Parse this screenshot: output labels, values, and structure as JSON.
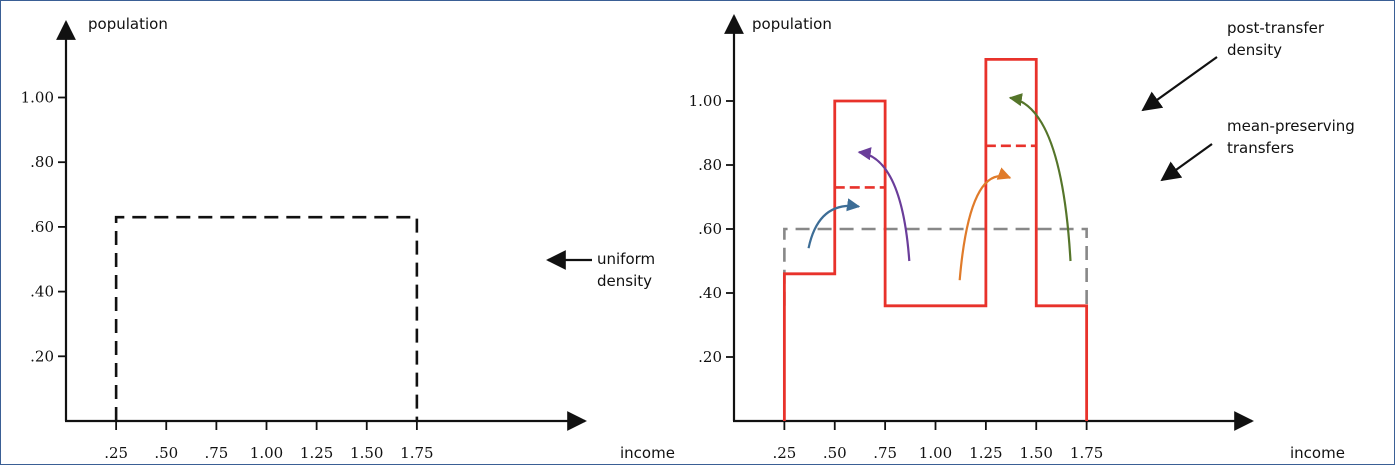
{
  "chart_data": [
    {
      "type": "line",
      "title": "",
      "ylabel": "population",
      "xlabel": "income",
      "x_ticks": [
        ".25",
        ".50",
        ".75",
        "1.00",
        "1.25",
        "1.50",
        "1.75"
      ],
      "y_ticks": [
        ".20",
        ".40",
        ".60",
        ".80",
        "1.00"
      ],
      "xlim": [
        0,
        2.0
      ],
      "ylim": [
        0,
        1.2
      ],
      "grid": false,
      "series": [
        {
          "name": "uniform density",
          "style": "dashed",
          "color": "#111111",
          "x": [
            0.25,
            0.25,
            1.75,
            1.75
          ],
          "y": [
            0,
            0.63,
            0.63,
            0
          ]
        }
      ],
      "annotations": [
        {
          "text": [
            "uniform",
            "density"
          ],
          "points_to": "uniform density"
        }
      ]
    },
    {
      "type": "line",
      "title": "",
      "ylabel": "population",
      "xlabel": "income",
      "x_ticks": [
        ".25",
        ".50",
        ".75",
        "1.00",
        "1.25",
        "1.50",
        "1.75"
      ],
      "y_ticks": [
        ".20",
        ".40",
        ".60",
        ".80",
        "1.00"
      ],
      "xlim": [
        0,
        2.0
      ],
      "ylim": [
        0,
        1.2
      ],
      "grid": false,
      "series": [
        {
          "name": "uniform density",
          "style": "dashed",
          "color": "#888888",
          "x": [
            0.25,
            0.25,
            1.75,
            1.75
          ],
          "y": [
            0.36,
            0.6,
            0.6,
            0.36
          ]
        },
        {
          "name": "post-transfer density",
          "style": "solid",
          "color": "#e8322b",
          "x": [
            0.25,
            0.25,
            0.5,
            0.5,
            0.75,
            0.75,
            1.25,
            1.25,
            1.5,
            1.5,
            1.75,
            1.75
          ],
          "y": [
            0,
            0.46,
            0.46,
            1.0,
            1.0,
            0.36,
            0.36,
            1.13,
            1.13,
            0.36,
            0.36,
            0
          ]
        }
      ],
      "mean_levels": [
        {
          "x": [
            0.5,
            0.75
          ],
          "y": 0.73,
          "color": "#e8322b"
        },
        {
          "x": [
            1.25,
            1.5
          ],
          "y": 0.86,
          "color": "#e8322b"
        }
      ],
      "transfers": [
        {
          "from": [
            0.37,
            0.54
          ],
          "to": [
            0.62,
            0.67
          ],
          "color": "#3d6d96"
        },
        {
          "from": [
            0.87,
            0.5
          ],
          "to": [
            0.62,
            0.84
          ],
          "color": "#6a3d9a"
        },
        {
          "from": [
            1.12,
            0.44
          ],
          "to": [
            1.37,
            0.76
          ],
          "color": "#e07b2a"
        },
        {
          "from": [
            1.67,
            0.5
          ],
          "to": [
            1.37,
            1.01
          ],
          "color": "#55752a"
        }
      ],
      "annotations": [
        {
          "text": [
            "post-transfer",
            "density"
          ],
          "points_to": "post-transfer density"
        },
        {
          "text": [
            "mean-preserving",
            "transfers"
          ],
          "points_to": "mean levels"
        }
      ]
    }
  ]
}
